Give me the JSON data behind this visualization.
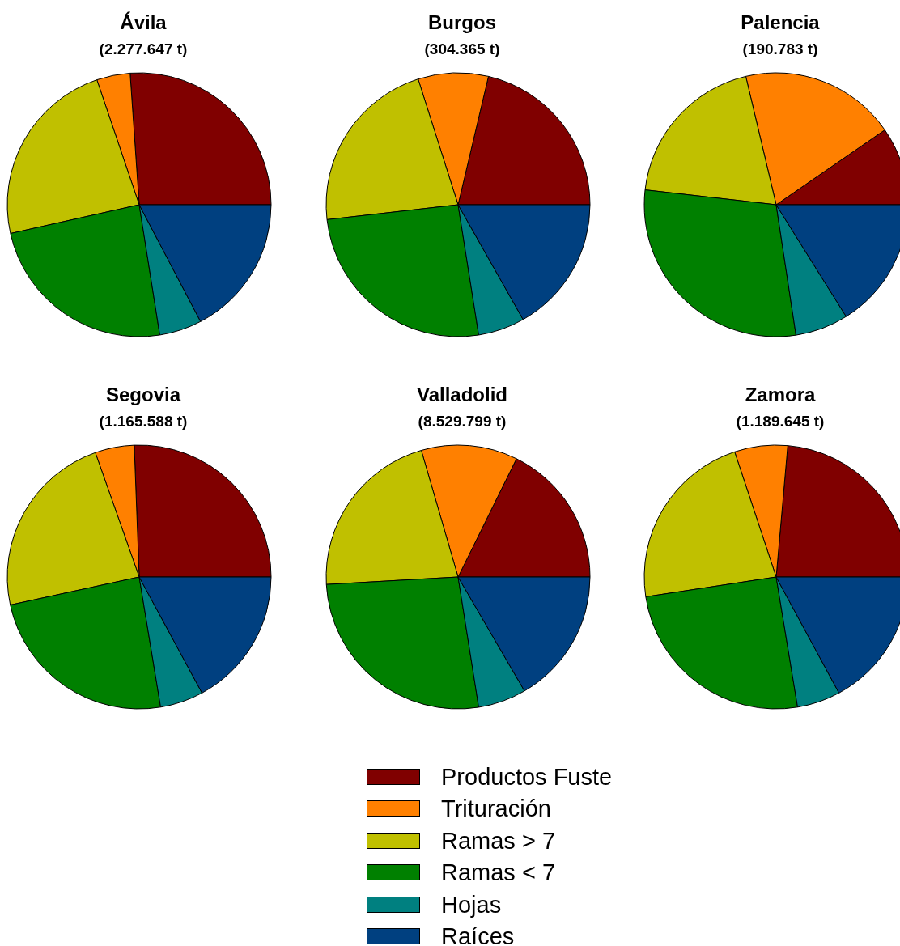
{
  "chart_data": [
    {
      "type": "pie",
      "title": "Ávila",
      "subtitle": "(2.277.647 t)",
      "categories": [
        "Productos Fuste",
        "Trituración",
        "Ramas > 7",
        "Ramas < 7",
        "Hojas",
        "Raíces"
      ],
      "values": [
        26.1,
        4.1,
        23.3,
        24.0,
        5.2,
        17.3
      ],
      "colors": [
        "#800000",
        "#ff8000",
        "#c0c000",
        "#008000",
        "#008080",
        "#004080"
      ],
      "legend": "bottom"
    },
    {
      "type": "pie",
      "title": "Burgos",
      "subtitle": "(304.365 t)",
      "values": [
        21.3,
        8.6,
        21.9,
        25.7,
        5.7,
        16.8
      ],
      "colors": [
        "#800000",
        "#ff8000",
        "#c0c000",
        "#008000",
        "#008080",
        "#004080"
      ]
    },
    {
      "type": "pie",
      "title": "Palencia",
      "subtitle": "(190.783 t)",
      "values": [
        9.6,
        19.1,
        19.5,
        29.2,
        6.5,
        16.1
      ],
      "colors": [
        "#800000",
        "#ff8000",
        "#c0c000",
        "#008000",
        "#008080",
        "#004080"
      ]
    },
    {
      "type": "pie",
      "title": "Segovia",
      "subtitle": "(1.165.588 t)",
      "values": [
        25.6,
        4.8,
        23.0,
        24.2,
        5.3,
        17.1
      ],
      "colors": [
        "#800000",
        "#ff8000",
        "#c0c000",
        "#008000",
        "#008080",
        "#004080"
      ]
    },
    {
      "type": "pie",
      "title": "Valladolid",
      "subtitle": "(8.529.799 t)",
      "values": [
        17.7,
        11.8,
        21.4,
        26.6,
        5.9,
        16.6
      ],
      "colors": [
        "#800000",
        "#ff8000",
        "#c0c000",
        "#008000",
        "#008080",
        "#004080"
      ]
    },
    {
      "type": "pie",
      "title": "Zamora",
      "subtitle": "(1.189.645 t)",
      "values": [
        23.6,
        6.5,
        22.3,
        25.2,
        5.3,
        17.1
      ],
      "colors": [
        "#800000",
        "#ff8000",
        "#c0c000",
        "#008000",
        "#008080",
        "#004080"
      ]
    }
  ]
}
